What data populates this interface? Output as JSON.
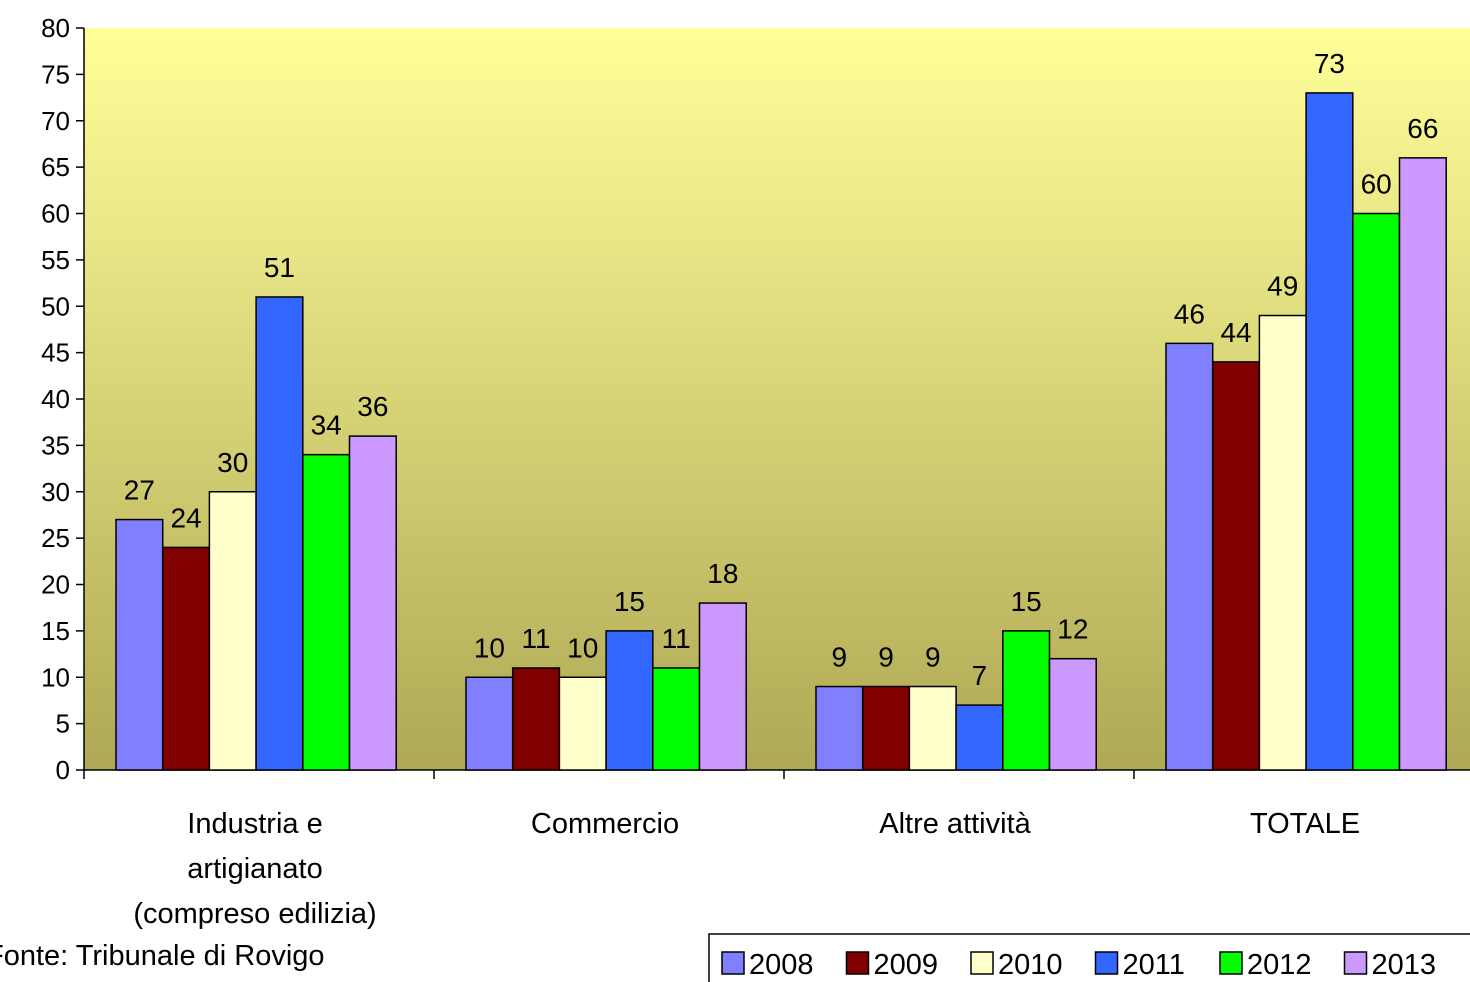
{
  "chart_data": {
    "type": "bar",
    "categories": [
      [
        "Industria e",
        "artigianato",
        "(compreso edilizia)"
      ],
      [
        "Commercio"
      ],
      [
        "Altre attività"
      ],
      [
        "TOTALE"
      ]
    ],
    "series": [
      {
        "name": "2008",
        "color": "#8080FF",
        "values": [
          27,
          10,
          9,
          46
        ]
      },
      {
        "name": "2009",
        "color": "#800000",
        "values": [
          24,
          11,
          9,
          44
        ]
      },
      {
        "name": "2010",
        "color": "#FFFFCC",
        "values": [
          30,
          10,
          9,
          49
        ]
      },
      {
        "name": "2011",
        "color": "#3366FF",
        "values": [
          51,
          15,
          7,
          73
        ]
      },
      {
        "name": "2012",
        "color": "#00FF00",
        "values": [
          34,
          11,
          15,
          60
        ]
      },
      {
        "name": "2013",
        "color": "#CC99FF",
        "values": [
          36,
          18,
          12,
          66
        ]
      }
    ],
    "ylim": [
      0,
      80
    ],
    "ytick_step": 5,
    "legend_position": "bottom-right",
    "plot_background": [
      "#FFFF99",
      "#AFA855"
    ]
  },
  "source_note": "Fonte: Tribunale di Rovigo"
}
